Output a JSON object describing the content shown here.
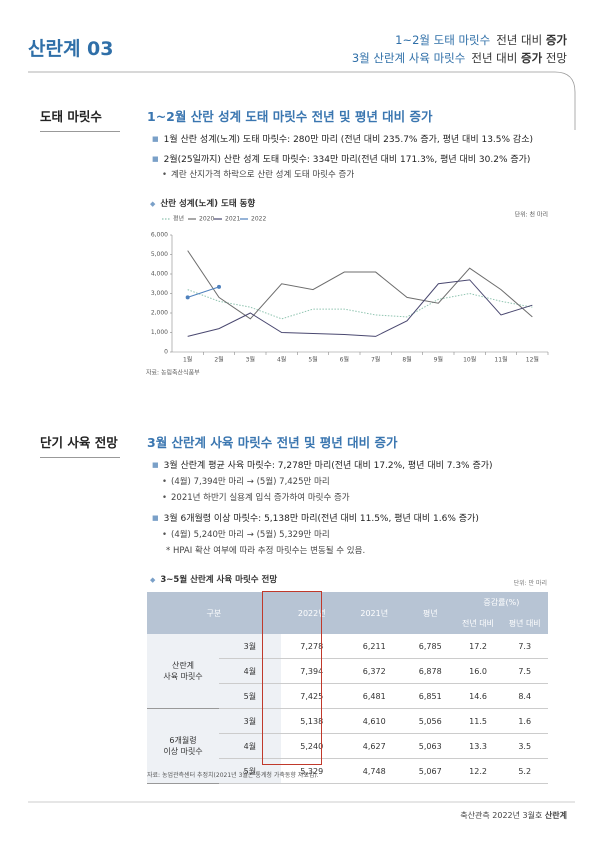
{
  "header": {
    "title": "산란계 03",
    "lines": [
      {
        "topic": "1~2월 도태 마릿수",
        "text": "전년 대비",
        "emph": "증가"
      },
      {
        "topic": "3월 산란계 사육 마릿수",
        "text": "전년 대비",
        "emph": "증가",
        "after": "전망"
      }
    ]
  },
  "section1": {
    "label": "도태 마릿수",
    "heading": "1~2월 산란 성계 도태 마릿수 전년 및 평년 대비 증가",
    "bullets": [
      "1월 산란 성계(노계) 도태 마릿수: 280만 마리 (전년 대비 235.7% 증가, 평년 대비 13.5% 감소)",
      "2월(25일까지) 산란 성계 도태 마릿수: 334만 마리(전년 대비 171.3%, 평년 대비 30.2% 증가)"
    ],
    "sub": "계란 산지가격 하락으로 산란 성계 도태 마릿수 증가"
  },
  "chart_data": {
    "type": "line",
    "title": "산란 성계(노계) 도태 동향",
    "unit": "단위: 천 마리",
    "source": "자료: 농림축산식품부",
    "categories": [
      "1월",
      "2월",
      "3월",
      "4월",
      "5월",
      "6월",
      "7월",
      "8월",
      "9월",
      "10월",
      "11월",
      "12월"
    ],
    "series": [
      {
        "name": "평년",
        "color": "#8fc4b0",
        "line_style": "dotted",
        "values": [
          3200,
          2600,
          2300,
          1700,
          2200,
          2200,
          1900,
          1800,
          2700,
          3000,
          2600,
          2300
        ]
      },
      {
        "name": "2020",
        "color": "#6d6d6d",
        "values": [
          5200,
          2800,
          1700,
          3500,
          3200,
          4100,
          4100,
          2800,
          2500,
          4300,
          3200,
          1800
        ]
      },
      {
        "name": "2021",
        "color": "#4a4870",
        "values": [
          800,
          1200,
          2000,
          1000,
          950,
          900,
          800,
          1600,
          3500,
          3700,
          1900,
          2400
        ]
      },
      {
        "name": "2022",
        "color": "#4f81bd",
        "markers": true,
        "values": [
          2800,
          3340,
          null,
          null,
          null,
          null,
          null,
          null,
          null,
          null,
          null,
          null
        ]
      }
    ],
    "ylim": [
      0,
      6000
    ],
    "yticks": [
      0,
      {
        "value": 1000,
        "label": "1,000"
      },
      {
        "value": 2000,
        "label": "2,000"
      },
      {
        "value": 3000,
        "label": "3,000"
      },
      {
        "value": 4000,
        "label": "4,000"
      },
      {
        "value": 5000,
        "label": "5,000"
      },
      {
        "value": 6000,
        "label": "6,000"
      }
    ],
    "legend": "top-left"
  },
  "section2": {
    "label": "단기 사육 전망",
    "heading": "3월 산란계 사육 마릿수 전년 및 평년 대비 증가",
    "b1": "3월 산란계 평균 사육 마릿수: 7,278만 마리(전년 대비 17.2%, 평년 대비 7.3% 증가)",
    "b1sub": [
      "(4월) 7,394만 마리 → (5월) 7,425만 마리",
      "2021년 하반기 실용계 입식 증가하여 마릿수 증가"
    ],
    "b2": "3월 6개월령 이상 마릿수: 5,138만 마리(전년 대비 11.5%, 평년 대비 1.6% 증가)",
    "b2sub": [
      "(4월) 5,240만 마리 → (5월) 5,329만 마리"
    ],
    "note": "* HPAI 확산 여부에 따라 추정 마릿수는 변동될 수 있음."
  },
  "table": {
    "title": "3~5월 산란계 사육 마릿수 전망",
    "unit": "단위: 만 마리",
    "header": {
      "group": "구분",
      "cols": [
        "2022년",
        "2021년",
        "평년"
      ],
      "change": "증감률(%)",
      "change_cols": [
        "전년 대비",
        "평년 대비"
      ]
    },
    "groups": [
      {
        "name": [
          "산란계",
          "사육 마릿수"
        ],
        "rows": [
          {
            "month": "3월",
            "cells": [
              "7,278",
              "6,211",
              "6,785",
              "17.2",
              "7.3"
            ]
          },
          {
            "month": "4월",
            "cells": [
              "7,394",
              "6,372",
              "6,878",
              "16.0",
              "7.5"
            ]
          },
          {
            "month": "5월",
            "cells": [
              "7,425",
              "6,481",
              "6,851",
              "14.6",
              "8.4"
            ]
          }
        ]
      },
      {
        "name": [
          "6개월령",
          "이상 마릿수"
        ],
        "rows": [
          {
            "month": "3월",
            "cells": [
              "5,138",
              "4,610",
              "5,056",
              "11.5",
              "1.6"
            ]
          },
          {
            "month": "4월",
            "cells": [
              "5,240",
              "4,627",
              "5,063",
              "13.3",
              "3.5"
            ]
          },
          {
            "month": "5월",
            "cells": [
              "5,329",
              "4,748",
              "5,067",
              "12.2",
              "5.2"
            ]
          }
        ]
      }
    ],
    "source": "자료: 농업관측센터 추정치(2021년 3월은 통계청 가축동향 자료임)."
  },
  "footer": {
    "text": "축산관측 2022년 3월호",
    "emph": "산란계"
  }
}
